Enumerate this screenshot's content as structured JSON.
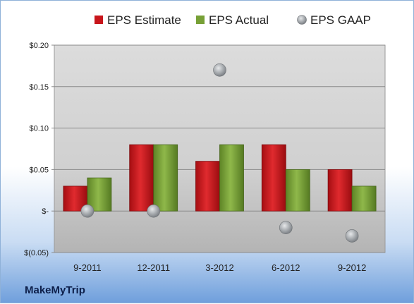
{
  "chart_data": {
    "type": "bar",
    "categories": [
      "9-2011",
      "12-2011",
      "3-2012",
      "6-2012",
      "9-2012"
    ],
    "series": [
      {
        "name": "EPS Estimate",
        "kind": "bar",
        "color": "#c8151b",
        "values": [
          0.03,
          0.08,
          0.06,
          0.08,
          0.05
        ]
      },
      {
        "name": "EPS Actual",
        "kind": "bar",
        "color": "#77a036",
        "values": [
          0.04,
          0.08,
          0.08,
          0.05,
          0.03
        ]
      },
      {
        "name": "EPS GAAP",
        "kind": "scatter",
        "color": "#a0a4a8",
        "values": [
          0.0,
          0.0,
          0.17,
          -0.02,
          -0.03
        ]
      }
    ],
    "ylim": [
      -0.05,
      0.2
    ],
    "yticks": [
      -0.05,
      0.0,
      0.05,
      0.1,
      0.15,
      0.2
    ],
    "ytick_labels": [
      "$(0.05)",
      "$-",
      "$0.05",
      "$0.10",
      "$0.15",
      "$0.20"
    ],
    "grid": true,
    "legend_position": "top"
  },
  "footer": {
    "brand": "MakeMyTrip"
  }
}
